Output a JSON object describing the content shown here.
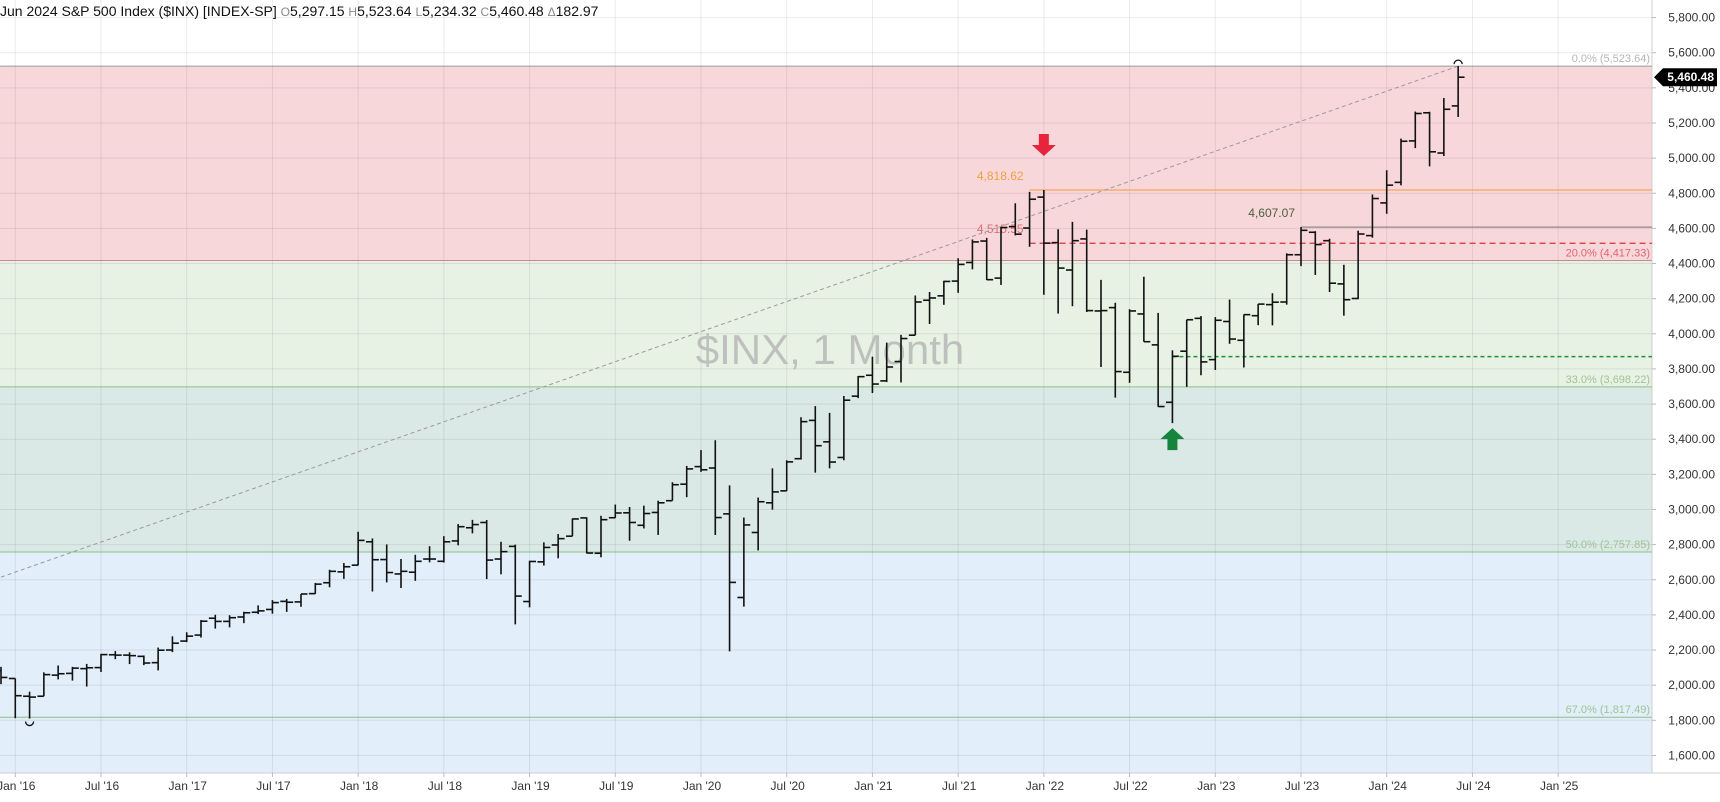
{
  "header": {
    "title": "Jun 2024 S&P 500 Index ($INX) [INDEX-SP]",
    "open_key": "O",
    "open": "5,297.15",
    "high_key": "H",
    "high": "5,523.64",
    "low_key": "L",
    "low": "5,234.32",
    "close_key": "C",
    "close": "5,460.48",
    "change_key": "Δ",
    "change": "182.97"
  },
  "watermark": "$INX, 1 Month",
  "last_price_label": "5,460.48",
  "colors": {
    "zone_top": "#f8d7da",
    "zone_mid": "#e7f2e5",
    "zone_low": "#dbe9e6",
    "zone_bottom": "#e2eefa",
    "bar": "#111111",
    "red_arrow": "#e8243c",
    "green_arrow": "#16843c",
    "orange_line": "#f5a55c",
    "red_dashed": "#d9303f",
    "green_dotted": "#1e8f3a",
    "fib_text": "#9fc494",
    "fib_red_text": "#e06470"
  },
  "chart_data": {
    "type": "bar",
    "subtype": "ohlc",
    "title": "$INX, 1 Month",
    "ylim": [
      1500,
      5900
    ],
    "y_axis_side": "right",
    "yticks": [
      1600,
      1800,
      2000,
      2200,
      2400,
      2600,
      2800,
      3000,
      3200,
      3400,
      3600,
      3800,
      4000,
      4200,
      4400,
      4600,
      4800,
      5000,
      5200,
      5400,
      5600,
      5800
    ],
    "ytick_labels": [
      "1,600.00",
      "1,800.00",
      "2,000.00",
      "2,200.00",
      "2,400.00",
      "2,600.00",
      "2,800.00",
      "3,000.00",
      "3,200.00",
      "3,400.00",
      "3,600.00",
      "3,800.00",
      "4,000.00",
      "4,200.00",
      "4,400.00",
      "4,600.00",
      "4,800.00",
      "5,000.00",
      "5,200.00",
      "5,400.00",
      "5,600.00",
      "5,800.00"
    ],
    "xlim": [
      "2015-12",
      "2025-04"
    ],
    "xticks": [
      "2016-01",
      "2016-07",
      "2017-01",
      "2017-07",
      "2018-01",
      "2018-07",
      "2019-01",
      "2019-07",
      "2020-01",
      "2020-07",
      "2021-01",
      "2021-07",
      "2022-01",
      "2022-07",
      "2023-01",
      "2023-07",
      "2024-01",
      "2024-07",
      "2025-01"
    ],
    "xtick_labels": [
      "Jan '16",
      "Jul '16",
      "Jan '17",
      "Jul '17",
      "Jan '18",
      "Jul '18",
      "Jan '19",
      "Jul '19",
      "Jan '20",
      "Jul '20",
      "Jan '21",
      "Jul '21",
      "Jan '22",
      "Jul '22",
      "Jan '23",
      "Jul '23",
      "Jan '24",
      "Jul '24",
      "Jan '25"
    ],
    "grid": true,
    "fibonacci": [
      {
        "label": "0.0% (5,523.64)",
        "value": 5523.64
      },
      {
        "label": "20.0% (4,417.33)",
        "value": 4417.33
      },
      {
        "label": "33.0% (3,698.22)",
        "value": 3698.22
      },
      {
        "label": "50.0% (2,757.85)",
        "value": 2757.85
      },
      {
        "label": "67.0% (1,817.49)",
        "value": 1817.49
      }
    ],
    "levels": [
      {
        "label": "4,818.62",
        "value": 4818.62,
        "style": "solid-orange",
        "from": "2021-12"
      },
      {
        "label": "4,607.07",
        "value": 4607.07,
        "style": "solid-gray",
        "from": "2023-07"
      },
      {
        "label": "4,515.55",
        "value": 4515.55,
        "style": "dashed-red",
        "from": "2021-12"
      },
      {
        "label": "",
        "value": 3870,
        "style": "dotted-green",
        "from": "2022-10"
      }
    ],
    "trendline": {
      "from": {
        "date": "2015-12",
        "value": 2615
      },
      "to": {
        "date": "2024-06",
        "value": 5523.64
      }
    },
    "arrows": [
      {
        "type": "down",
        "date": "2022-01",
        "value": 4818.62
      },
      {
        "type": "up",
        "date": "2022-10",
        "value": 3491.58
      }
    ],
    "ohlc": [
      {
        "date": "2015-12",
        "o": 2082,
        "h": 2104,
        "l": 2006,
        "c": 2044
      },
      {
        "date": "2016-01",
        "o": 2038,
        "h": 2038,
        "l": 1812,
        "c": 1940
      },
      {
        "date": "2016-02",
        "o": 1937,
        "h": 1963,
        "l": 1810,
        "c": 1932
      },
      {
        "date": "2016-03",
        "o": 1937,
        "h": 2073,
        "l": 1937,
        "c": 2060
      },
      {
        "date": "2016-04",
        "o": 2057,
        "h": 2112,
        "l": 2033,
        "c": 2065
      },
      {
        "date": "2016-05",
        "o": 2067,
        "h": 2104,
        "l": 2026,
        "c": 2097
      },
      {
        "date": "2016-06",
        "o": 2094,
        "h": 2121,
        "l": 1992,
        "c": 2099
      },
      {
        "date": "2016-07",
        "o": 2100,
        "h": 2178,
        "l": 2075,
        "c": 2174
      },
      {
        "date": "2016-08",
        "o": 2173,
        "h": 2194,
        "l": 2148,
        "c": 2171
      },
      {
        "date": "2016-09",
        "o": 2171,
        "h": 2187,
        "l": 2120,
        "c": 2168
      },
      {
        "date": "2016-10",
        "o": 2164,
        "h": 2169,
        "l": 2114,
        "c": 2126
      },
      {
        "date": "2016-11",
        "o": 2128,
        "h": 2214,
        "l": 2084,
        "c": 2199
      },
      {
        "date": "2016-12",
        "o": 2200,
        "h": 2278,
        "l": 2188,
        "c": 2239
      },
      {
        "date": "2017-01",
        "o": 2251,
        "h": 2301,
        "l": 2245,
        "c": 2279
      },
      {
        "date": "2017-02",
        "o": 2285,
        "h": 2371,
        "l": 2271,
        "c": 2364
      },
      {
        "date": "2017-03",
        "o": 2381,
        "h": 2401,
        "l": 2322,
        "c": 2363
      },
      {
        "date": "2017-04",
        "o": 2363,
        "h": 2398,
        "l": 2329,
        "c": 2384
      },
      {
        "date": "2017-05",
        "o": 2388,
        "h": 2418,
        "l": 2353,
        "c": 2412
      },
      {
        "date": "2017-06",
        "o": 2415,
        "h": 2454,
        "l": 2405,
        "c": 2423
      },
      {
        "date": "2017-07",
        "o": 2431,
        "h": 2484,
        "l": 2407,
        "c": 2470
      },
      {
        "date": "2017-08",
        "o": 2477,
        "h": 2491,
        "l": 2417,
        "c": 2472
      },
      {
        "date": "2017-09",
        "o": 2474,
        "h": 2519,
        "l": 2446,
        "c": 2519
      },
      {
        "date": "2017-10",
        "o": 2521,
        "h": 2582,
        "l": 2520,
        "c": 2575
      },
      {
        "date": "2017-11",
        "o": 2583,
        "h": 2657,
        "l": 2557,
        "c": 2648
      },
      {
        "date": "2017-12",
        "o": 2645,
        "h": 2695,
        "l": 2605,
        "c": 2674
      },
      {
        "date": "2018-01",
        "o": 2683,
        "h": 2873,
        "l": 2682,
        "c": 2824
      },
      {
        "date": "2018-02",
        "o": 2816,
        "h": 2835,
        "l": 2533,
        "c": 2714
      },
      {
        "date": "2018-03",
        "o": 2715,
        "h": 2801,
        "l": 2585,
        "c": 2641
      },
      {
        "date": "2018-04",
        "o": 2633,
        "h": 2718,
        "l": 2553,
        "c": 2648
      },
      {
        "date": "2018-05",
        "o": 2643,
        "h": 2742,
        "l": 2594,
        "c": 2705
      },
      {
        "date": "2018-06",
        "o": 2718,
        "h": 2791,
        "l": 2699,
        "c": 2718
      },
      {
        "date": "2018-07",
        "o": 2705,
        "h": 2848,
        "l": 2698,
        "c": 2816
      },
      {
        "date": "2018-08",
        "o": 2821,
        "h": 2917,
        "l": 2796,
        "c": 2902
      },
      {
        "date": "2018-09",
        "o": 2896,
        "h": 2941,
        "l": 2864,
        "c": 2914
      },
      {
        "date": "2018-10",
        "o": 2926,
        "h": 2940,
        "l": 2604,
        "c": 2712
      },
      {
        "date": "2018-11",
        "o": 2718,
        "h": 2816,
        "l": 2631,
        "c": 2760
      },
      {
        "date": "2018-12",
        "o": 2790,
        "h": 2800,
        "l": 2346,
        "c": 2507
      },
      {
        "date": "2019-01",
        "o": 2476,
        "h": 2708,
        "l": 2443,
        "c": 2704
      },
      {
        "date": "2019-02",
        "o": 2702,
        "h": 2813,
        "l": 2681,
        "c": 2784
      },
      {
        "date": "2019-03",
        "o": 2798,
        "h": 2860,
        "l": 2722,
        "c": 2834
      },
      {
        "date": "2019-04",
        "o": 2848,
        "h": 2949,
        "l": 2848,
        "c": 2946
      },
      {
        "date": "2019-05",
        "o": 2952,
        "h": 2955,
        "l": 2750,
        "c": 2752
      },
      {
        "date": "2019-06",
        "o": 2751,
        "h": 2964,
        "l": 2728,
        "c": 2942
      },
      {
        "date": "2019-07",
        "o": 2953,
        "h": 3028,
        "l": 2952,
        "c": 2980
      },
      {
        "date": "2019-08",
        "o": 2981,
        "h": 3014,
        "l": 2822,
        "c": 2926
      },
      {
        "date": "2019-09",
        "o": 2910,
        "h": 3022,
        "l": 2892,
        "c": 2977
      },
      {
        "date": "2019-10",
        "o": 2983,
        "h": 3050,
        "l": 2855,
        "c": 3038
      },
      {
        "date": "2019-11",
        "o": 3050,
        "h": 3155,
        "l": 3050,
        "c": 3141
      },
      {
        "date": "2019-12",
        "o": 3144,
        "h": 3248,
        "l": 3070,
        "c": 3231
      },
      {
        "date": "2020-01",
        "o": 3244,
        "h": 3338,
        "l": 3214,
        "c": 3226
      },
      {
        "date": "2020-02",
        "o": 3236,
        "h": 3394,
        "l": 2855,
        "c": 2954
      },
      {
        "date": "2020-03",
        "o": 2975,
        "h": 3137,
        "l": 2192,
        "c": 2585
      },
      {
        "date": "2020-04",
        "o": 2499,
        "h": 2954,
        "l": 2447,
        "c": 2912
      },
      {
        "date": "2020-05",
        "o": 2869,
        "h": 3068,
        "l": 2767,
        "c": 3044
      },
      {
        "date": "2020-06",
        "o": 3038,
        "h": 3234,
        "l": 2999,
        "c": 3100
      },
      {
        "date": "2020-07",
        "o": 3106,
        "h": 3280,
        "l": 3106,
        "c": 3271
      },
      {
        "date": "2020-08",
        "o": 3289,
        "h": 3525,
        "l": 3284,
        "c": 3500
      },
      {
        "date": "2020-09",
        "o": 3507,
        "h": 3588,
        "l": 3210,
        "c": 3363
      },
      {
        "date": "2020-10",
        "o": 3385,
        "h": 3550,
        "l": 3234,
        "c": 3270
      },
      {
        "date": "2020-11",
        "o": 3296,
        "h": 3646,
        "l": 3280,
        "c": 3622
      },
      {
        "date": "2020-12",
        "o": 3645,
        "h": 3760,
        "l": 3634,
        "c": 3756
      },
      {
        "date": "2021-01",
        "o": 3764,
        "h": 3870,
        "l": 3663,
        "c": 3714
      },
      {
        "date": "2021-02",
        "o": 3732,
        "h": 3950,
        "l": 3725,
        "c": 3811
      },
      {
        "date": "2021-03",
        "o": 3842,
        "h": 3994,
        "l": 3723,
        "c": 3973
      },
      {
        "date": "2021-04",
        "o": 3992,
        "h": 4218,
        "l": 3992,
        "c": 4181
      },
      {
        "date": "2021-05",
        "o": 4191,
        "h": 4238,
        "l": 4056,
        "c": 4204
      },
      {
        "date": "2021-06",
        "o": 4216,
        "h": 4302,
        "l": 4165,
        "c": 4298
      },
      {
        "date": "2021-07",
        "o": 4300,
        "h": 4430,
        "l": 4233,
        "c": 4395
      },
      {
        "date": "2021-08",
        "o": 4406,
        "h": 4537,
        "l": 4367,
        "c": 4523
      },
      {
        "date": "2021-09",
        "o": 4528,
        "h": 4546,
        "l": 4306,
        "c": 4308
      },
      {
        "date": "2021-10",
        "o": 4317,
        "h": 4608,
        "l": 4278,
        "c": 4605
      },
      {
        "date": "2021-11",
        "o": 4610,
        "h": 4743,
        "l": 4560,
        "c": 4567
      },
      {
        "date": "2021-12",
        "o": 4602,
        "h": 4808,
        "l": 4495,
        "c": 4766
      },
      {
        "date": "2022-01",
        "o": 4778,
        "h": 4818.62,
        "l": 4222,
        "c": 4516
      },
      {
        "date": "2022-02",
        "o": 4519,
        "h": 4595,
        "l": 4115,
        "c": 4374
      },
      {
        "date": "2022-03",
        "o": 4363,
        "h": 4637,
        "l": 4157,
        "c": 4530
      },
      {
        "date": "2022-04",
        "o": 4540,
        "h": 4593,
        "l": 4124,
        "c": 4132
      },
      {
        "date": "2022-05",
        "o": 4130,
        "h": 4307,
        "l": 3811,
        "c": 4132
      },
      {
        "date": "2022-06",
        "o": 4149,
        "h": 4177,
        "l": 3637,
        "c": 3785
      },
      {
        "date": "2022-07",
        "o": 3781,
        "h": 4140,
        "l": 3721,
        "c": 4130
      },
      {
        "date": "2022-08",
        "o": 4113,
        "h": 4325,
        "l": 3955,
        "c": 3955
      },
      {
        "date": "2022-09",
        "o": 3937,
        "h": 4119,
        "l": 3585,
        "c": 3586
      },
      {
        "date": "2022-10",
        "o": 3610,
        "h": 3906,
        "l": 3491.58,
        "c": 3872
      },
      {
        "date": "2022-11",
        "o": 3901,
        "h": 4080,
        "l": 3698,
        "c": 4080
      },
      {
        "date": "2022-12",
        "o": 4088,
        "h": 4101,
        "l": 3764,
        "c": 3840
      },
      {
        "date": "2023-01",
        "o": 3853,
        "h": 4095,
        "l": 3794,
        "c": 4077
      },
      {
        "date": "2023-02",
        "o": 4070,
        "h": 4195,
        "l": 3943,
        "c": 3970
      },
      {
        "date": "2023-03",
        "o": 3963,
        "h": 4110,
        "l": 3808,
        "c": 4109
      },
      {
        "date": "2023-04",
        "o": 4103,
        "h": 4170,
        "l": 4049,
        "c": 4169
      },
      {
        "date": "2023-05",
        "o": 4166,
        "h": 4231,
        "l": 4048,
        "c": 4180
      },
      {
        "date": "2023-06",
        "o": 4181,
        "h": 4458,
        "l": 4166,
        "c": 4450
      },
      {
        "date": "2023-07",
        "o": 4450,
        "h": 4607.07,
        "l": 4385,
        "c": 4589
      },
      {
        "date": "2023-08",
        "o": 4578,
        "h": 4584,
        "l": 4335,
        "c": 4508
      },
      {
        "date": "2023-09",
        "o": 4530,
        "h": 4541,
        "l": 4238,
        "c": 4288
      },
      {
        "date": "2023-10",
        "o": 4284,
        "h": 4393,
        "l": 4103,
        "c": 4194
      },
      {
        "date": "2023-11",
        "o": 4201,
        "h": 4587,
        "l": 4197,
        "c": 4568
      },
      {
        "date": "2023-12",
        "o": 4559,
        "h": 4793,
        "l": 4547,
        "c": 4770
      },
      {
        "date": "2024-01",
        "o": 4745,
        "h": 4931,
        "l": 4683,
        "c": 4846
      },
      {
        "date": "2024-02",
        "o": 4862,
        "h": 5111,
        "l": 4845,
        "c": 5096
      },
      {
        "date": "2024-03",
        "o": 5098,
        "h": 5265,
        "l": 5057,
        "c": 5254
      },
      {
        "date": "2024-04",
        "o": 5258,
        "h": 5264,
        "l": 4953,
        "c": 5036
      },
      {
        "date": "2024-05",
        "o": 5029,
        "h": 5342,
        "l": 5012,
        "c": 5278
      },
      {
        "date": "2024-06",
        "o": 5297.15,
        "h": 5523.64,
        "l": 5234.32,
        "c": 5460.48
      }
    ]
  }
}
